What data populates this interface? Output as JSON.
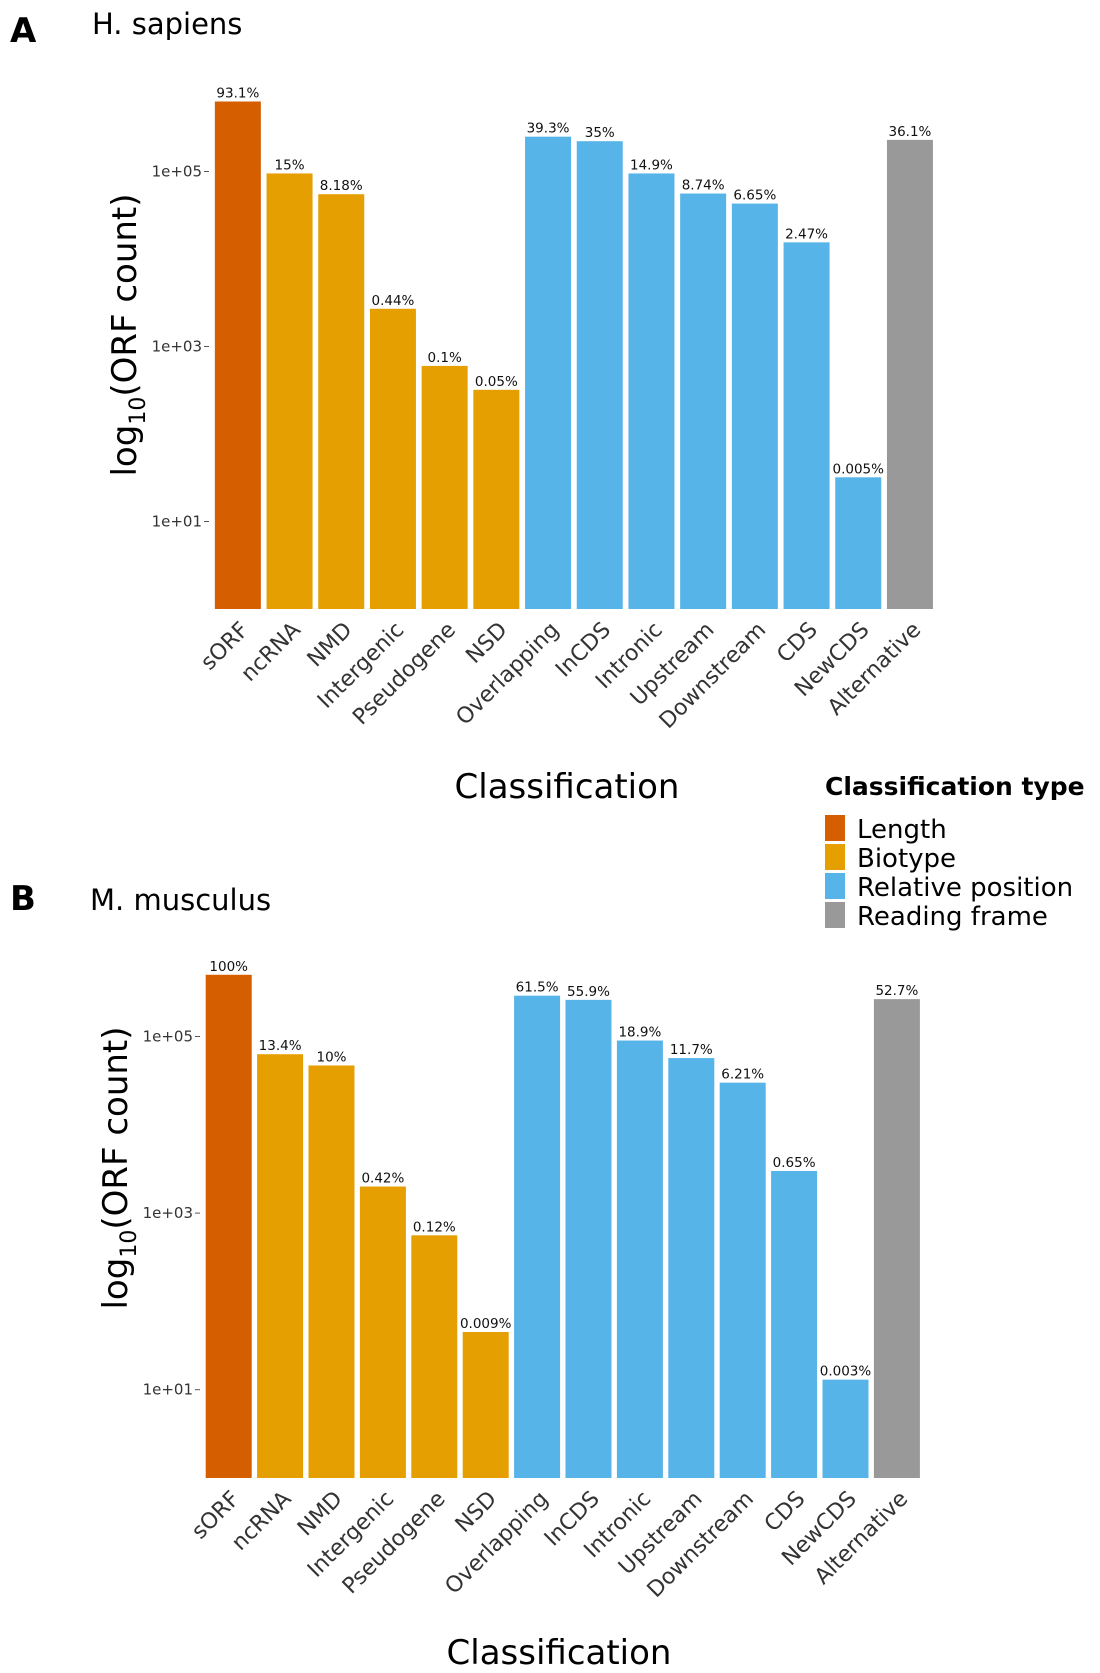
{
  "colors": {
    "Length": "#D55E00",
    "Biotype": "#E69F00",
    "Relative position": "#56B4E9",
    "Reading frame": "#999999"
  },
  "legend": {
    "title": "Classification type",
    "entries": [
      "Length",
      "Biotype",
      "Relative position",
      "Reading frame"
    ]
  },
  "chart_data": [
    {
      "type": "bar",
      "panel": "A",
      "title": "H. sapiens",
      "xlabel": "Classification",
      "ylabel_base": "log",
      "ylabel_sub": "10",
      "ylabel_rest": "(ORF count)",
      "y_scale": "log10",
      "ylim": [
        1,
        1000000
      ],
      "y_ticks": [
        10,
        1000,
        100000
      ],
      "y_tick_labels": [
        "1e+01",
        "1e+03",
        "1e+05"
      ],
      "categories": [
        "sORF",
        "ncRNA",
        "NMD",
        "Intergenic",
        "Pseudogene",
        "NSD",
        "Overlapping",
        "InCDS",
        "Intronic",
        "Upstream",
        "Downstream",
        "CDS",
        "NewCDS",
        "Alternative"
      ],
      "groups": [
        "Length",
        "Biotype",
        "Biotype",
        "Biotype",
        "Biotype",
        "Biotype",
        "Relative position",
        "Relative position",
        "Relative position",
        "Relative position",
        "Relative position",
        "Relative position",
        "Relative position",
        "Reading frame"
      ],
      "values": [
        631000,
        95000,
        55000,
        2700,
        600,
        320,
        250000,
        222000,
        95000,
        56000,
        43000,
        15500,
        32,
        230000
      ],
      "labels": [
        "93.1%",
        "15%",
        "8.18%",
        "0.44%",
        "0.1%",
        "0.05%",
        "39.3%",
        "35%",
        "14.9%",
        "8.74%",
        "6.65%",
        "2.47%",
        "0.005%",
        "36.1%"
      ]
    },
    {
      "type": "bar",
      "panel": "B",
      "title": "M. musculus",
      "xlabel": "Classification",
      "ylabel_base": "log",
      "ylabel_sub": "10",
      "ylabel_rest": "(ORF count)",
      "y_scale": "log10",
      "ylim": [
        1,
        1000000
      ],
      "y_ticks": [
        10,
        1000,
        100000
      ],
      "y_tick_labels": [
        "1e+01",
        "1e+03",
        "1e+05"
      ],
      "categories": [
        "sORF",
        "ncRNA",
        "NMD",
        "Intergenic",
        "Pseudogene",
        "NSD",
        "Overlapping",
        "InCDS",
        "Intronic",
        "Upstream",
        "Downstream",
        "CDS",
        "NewCDS",
        "Alternative"
      ],
      "groups": [
        "Length",
        "Biotype",
        "Biotype",
        "Biotype",
        "Biotype",
        "Biotype",
        "Relative position",
        "Relative position",
        "Relative position",
        "Relative position",
        "Relative position",
        "Relative position",
        "Relative position",
        "Reading frame"
      ],
      "values": [
        500000,
        63000,
        47000,
        2000,
        560,
        45,
        290000,
        260000,
        90000,
        57000,
        30000,
        3000,
        13,
        265000
      ],
      "labels": [
        "100%",
        "13.4%",
        "10%",
        "0.42%",
        "0.12%",
        "0.009%",
        "61.5%",
        "55.9%",
        "18.9%",
        "11.7%",
        "6.21%",
        "0.65%",
        "0.003%",
        "52.7%"
      ]
    }
  ]
}
